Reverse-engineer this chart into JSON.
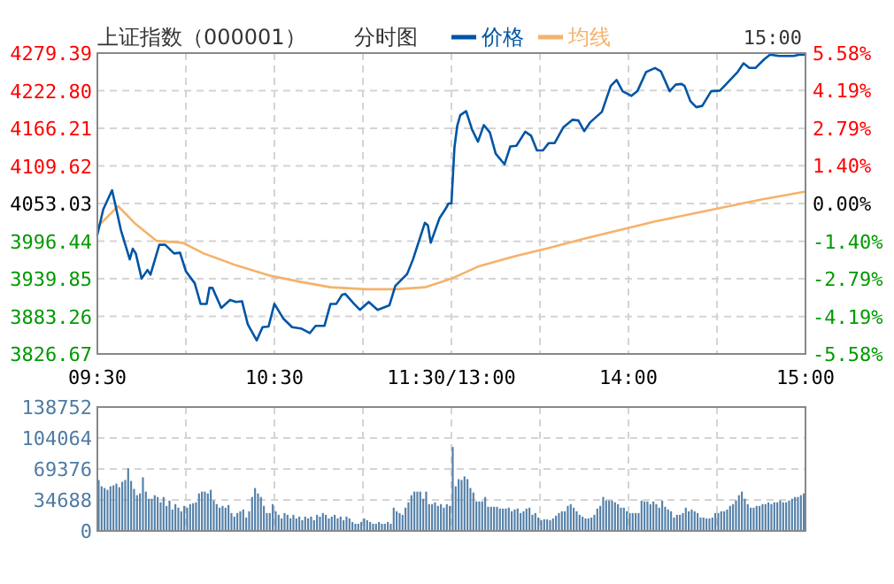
{
  "chart_data": [
    {
      "type": "line",
      "title": "上证指数（000001）",
      "subtitle": "分时图",
      "xlim": [
        9.5,
        11.5
      ],
      "xticks": [
        {
          "value": 9.5,
          "label": "09:30"
        },
        {
          "value": 10,
          "label": null
        },
        {
          "value": 10.5,
          "label": "10:30"
        },
        {
          "value": 11,
          "label": null
        },
        {
          "value": 11.5,
          "label": "11:30/13:00"
        }
      ],
      "ylim": [
        3826.67,
        4279.39
      ],
      "yticks": [
        3826.67,
        3883.26,
        3939.85,
        3996.44,
        4053.03,
        4109.62,
        4166.21,
        {
          "value": 4222.8,
          "label": "4222.80"
        },
        4279.39
      ],
      "grid": true,
      "legend": "top",
      "series": [
        {
          "name": "价格",
          "color": "#0055a5",
          "x": [
            9.5,
            9.533,
            9.583,
            9.6,
            9.633,
            9.683,
            9.7,
            9.717,
            9.75,
            9.783,
            9.8,
            9.85,
            9.883,
            9.933,
            9.967,
            10,
            10.05,
            10.083,
            10.117,
            10.133,
            10.15,
            10.2,
            10.25,
            10.283,
            10.317,
            10.35,
            10.4,
            10.433,
            10.467,
            10.5,
            10.55,
            10.6,
            10.65,
            10.7,
            10.733,
            10.783,
            10.817,
            10.85,
            10.883,
            10.9,
            10.95,
            10.983,
            11.033,
            11.083,
            11.15,
            11.183,
            11.25,
            11.283,
            11.35,
            11.367,
            11.383,
            11.433,
            11.467,
            11.483,
            11.5
          ],
          "values": [
            4006,
            4044,
            4073,
            4053,
            4013,
            3969,
            3985,
            3978,
            3940,
            3953,
            3946,
            3991,
            3991,
            3978,
            3979,
            3951,
            3933,
            3902,
            3902,
            3926,
            3926,
            3896,
            3908,
            3905,
            3906,
            3871,
            3847,
            3867,
            3868,
            3902,
            3880,
            3867,
            3865,
            3858,
            3869,
            3869,
            3902,
            3902,
            3916,
            3917,
            3902,
            3893,
            3905,
            3893,
            3900,
            3929,
            3947,
            3969,
            4024,
            4020,
            3994,
            4031,
            4045,
            4053,
            4053
          ]
        },
        {
          "name": "均线",
          "color": "#f5b26b",
          "x": [
            9.5,
            9.617,
            9.717,
            9.833,
            9.983,
            10.1,
            10.283,
            10.483,
            10.65,
            10.817,
            11.017,
            11.183,
            11.35,
            11.5
          ],
          "values": [
            4018,
            4049,
            4022,
            3997,
            3994,
            3978,
            3960,
            3944,
            3935,
            3927,
            3924,
            3924,
            3927,
            3940
          ]
        }
      ]
    },
    {
      "type": "line",
      "annotations": [
        "15:00"
      ],
      "xlim": [
        13,
        15
      ],
      "xticks": [
        {
          "value": 13,
          "label": null
        },
        {
          "value": 13.5,
          "label": null
        },
        {
          "value": 14,
          "label": "14:00"
        },
        {
          "value": 14.5,
          "label": null
        },
        {
          "value": 15,
          "label": "15:00"
        }
      ],
      "ylim": [
        3826.67,
        4279.39
      ],
      "y2lim": [
        -5.58,
        5.58
      ],
      "y2ticks": [
        {
          "value": -5.58,
          "label": "-5.58%"
        },
        {
          "value": -4.19,
          "label": "-4.19%"
        },
        {
          "value": -2.79,
          "label": "-2.79%"
        },
        {
          "value": -1.4,
          "label": "-1.40%"
        },
        {
          "value": 0,
          "label": "0.00%"
        },
        {
          "value": 1.4,
          "label": "1.40%"
        },
        {
          "value": 2.79,
          "label": "2.79%"
        },
        {
          "value": 4.19,
          "label": "4.19%"
        },
        {
          "value": 5.58,
          "label": "5.58%"
        }
      ],
      "grid": true,
      "series": [
        {
          "color": "#0055a5",
          "x": [
            13,
            13.017,
            13.033,
            13.05,
            13.083,
            13.117,
            13.15,
            13.183,
            13.217,
            13.25,
            13.3,
            13.333,
            13.367,
            13.417,
            13.45,
            13.483,
            13.517,
            13.55,
            13.583,
            13.633,
            13.683,
            13.717,
            13.75,
            13.783,
            13.85,
            13.9,
            13.933,
            13.967,
            14.017,
            14.05,
            14.1,
            14.15,
            14.183,
            14.233,
            14.267,
            14.3,
            14.317,
            14.35,
            14.383,
            14.417,
            14.467,
            14.517,
            14.567,
            14.617,
            14.65,
            14.683,
            14.717,
            14.767,
            14.8,
            14.85,
            14.933,
            14.967,
            15
          ],
          "values": [
            4053,
            4137,
            4170,
            4186,
            4192,
            4164,
            4146,
            4171,
            4160,
            4128,
            4112,
            4139,
            4140,
            4161,
            4155,
            4133,
            4133,
            4144,
            4144,
            4168,
            4179,
            4178,
            4162,
            4175,
            4191,
            4230,
            4239,
            4222,
            4215,
            4222,
            4251,
            4257,
            4252,
            4222,
            4232,
            4233,
            4230,
            4207,
            4198,
            4200,
            4222,
            4223,
            4237,
            4251,
            4264,
            4257,
            4257,
            4270,
            4277,
            4275,
            4275,
            4277,
            4277
          ]
        },
        {
          "color": "#f5b26b",
          "x": [
            13,
            13.15,
            13.35,
            13.55,
            13.75,
            13.95,
            14.15,
            14.35,
            14.55,
            14.75,
            15
          ],
          "values": [
            3940,
            3958,
            3973,
            3986,
            4000,
            4013,
            4026,
            4037,
            4048,
            4059,
            4071
          ]
        }
      ]
    },
    {
      "type": "bar",
      "tick_labels": "y",
      "grid": true,
      "color": "#5480a8",
      "categories": [
        null,
        null,
        null,
        null,
        null,
        null,
        null,
        null,
        null,
        null,
        null,
        null,
        null,
        null,
        null,
        null,
        null,
        null,
        null,
        null,
        null,
        null,
        null,
        null,
        null,
        null,
        null,
        null,
        null,
        null,
        null,
        null,
        null,
        null,
        null,
        null,
        null,
        null,
        null,
        null,
        null,
        null,
        null,
        null,
        null,
        null,
        null,
        null,
        null,
        null,
        null,
        null,
        null,
        null,
        null,
        null,
        null,
        null,
        null,
        null,
        null,
        null,
        null,
        null,
        null,
        null,
        null,
        null,
        null,
        null,
        null,
        null,
        null,
        null,
        null,
        null,
        null,
        null,
        null,
        null,
        null,
        null,
        null,
        null,
        null,
        null,
        null,
        null,
        null,
        null,
        null,
        null,
        null,
        null,
        null,
        null,
        null,
        null,
        null,
        null,
        null,
        null,
        null,
        null,
        null,
        null,
        null,
        null,
        null,
        null,
        null,
        null,
        null,
        null,
        null,
        null,
        null,
        null,
        null,
        null,
        null,
        null,
        null,
        null,
        null,
        null,
        null,
        null,
        null,
        null,
        null,
        null,
        null,
        null,
        null,
        null,
        null,
        null,
        null,
        null,
        null,
        null,
        null,
        null,
        null,
        null,
        null,
        null,
        null,
        null,
        null,
        null,
        null,
        null,
        null,
        null,
        null,
        null,
        null,
        null,
        null,
        null,
        null,
        null,
        null,
        null,
        null,
        null,
        null,
        null,
        null,
        null,
        null,
        null,
        null,
        null,
        null,
        null,
        null,
        null,
        null,
        null,
        null,
        null,
        null,
        null,
        null,
        null,
        null,
        null,
        null,
        null,
        null,
        null,
        null,
        null,
        null,
        null,
        null,
        null,
        null,
        null,
        null,
        null,
        null,
        null,
        null,
        null,
        null,
        null,
        null,
        null,
        null,
        null,
        null,
        null,
        null,
        null,
        null,
        null,
        null,
        null,
        null,
        null,
        null,
        null,
        null,
        null,
        null,
        null,
        null,
        null,
        null,
        null,
        null,
        null,
        null,
        null,
        null,
        null
      ],
      "values": [
        57000,
        50000,
        48000,
        46000,
        50000,
        51000,
        53000,
        49000,
        55000,
        57000,
        70000,
        56000,
        47000,
        40000,
        42000,
        60000,
        44000,
        36000,
        36000,
        40000,
        38000,
        32000,
        38000,
        28000,
        34000,
        24000,
        30000,
        26000,
        22000,
        28000,
        26000,
        30000,
        31000,
        32000,
        42000,
        44000,
        44000,
        42000,
        46000,
        34000,
        30000,
        26000,
        28000,
        26000,
        29000,
        20000,
        16000,
        20000,
        22000,
        24000,
        15000,
        22000,
        38000,
        48000,
        42000,
        38000,
        28000,
        20000,
        20000,
        30000,
        22000,
        18000,
        14000,
        20000,
        18000,
        14000,
        18000,
        14000,
        16000,
        12000,
        16000,
        14000,
        16000,
        12000,
        18000,
        16000,
        20000,
        18000,
        14000,
        16000,
        18000,
        14000,
        16000,
        12000,
        16000,
        14000,
        10000,
        8000,
        8000,
        10000,
        14000,
        12000,
        10000,
        8000,
        8000,
        10000,
        8000,
        8000,
        10000,
        8000,
        26000,
        22000,
        20000,
        18000,
        26000,
        32000,
        40000,
        44000,
        44000,
        44000,
        36000,
        44000,
        30000,
        30000,
        32000,
        28000,
        30000,
        26000,
        30000,
        28000,
        94000,
        50000,
        58000,
        57000,
        61000,
        58000,
        48000,
        43000,
        33000,
        33000,
        33000,
        38000,
        27000,
        27000,
        27000,
        27000,
        25000,
        25000,
        25000,
        26000,
        22000,
        24000,
        25000,
        20000,
        22000,
        25000,
        26000,
        18000,
        20000,
        15000,
        12000,
        13000,
        13000,
        12000,
        14000,
        17000,
        20000,
        22000,
        22000,
        28000,
        30000,
        26000,
        22000,
        18000,
        16000,
        14000,
        14000,
        15000,
        18000,
        25000,
        28000,
        38000,
        34000,
        34000,
        34000,
        32000,
        30000,
        26000,
        26000,
        22000,
        20000,
        20000,
        20000,
        20000,
        34000,
        33000,
        33000,
        30000,
        33000,
        30000,
        26000,
        34000,
        27000,
        24000,
        22000,
        15000,
        18000,
        18000,
        20000,
        26000,
        22000,
        24000,
        22000,
        20000,
        15000,
        15000,
        14000,
        14000,
        15000,
        20000,
        20000,
        22000,
        22000,
        24000,
        28000,
        30000,
        34000,
        40000,
        44000,
        36000,
        30000,
        26000,
        26000,
        28000,
        28000,
        30000,
        30000,
        32000,
        30000,
        32000,
        32000,
        34000,
        32000,
        32000,
        34000,
        36000,
        38000,
        38000,
        40000,
        42000
      ],
      "ylim": [
        0,
        138752
      ],
      "yticks": [
        0,
        34688,
        69376,
        104064,
        138752
      ]
    }
  ]
}
